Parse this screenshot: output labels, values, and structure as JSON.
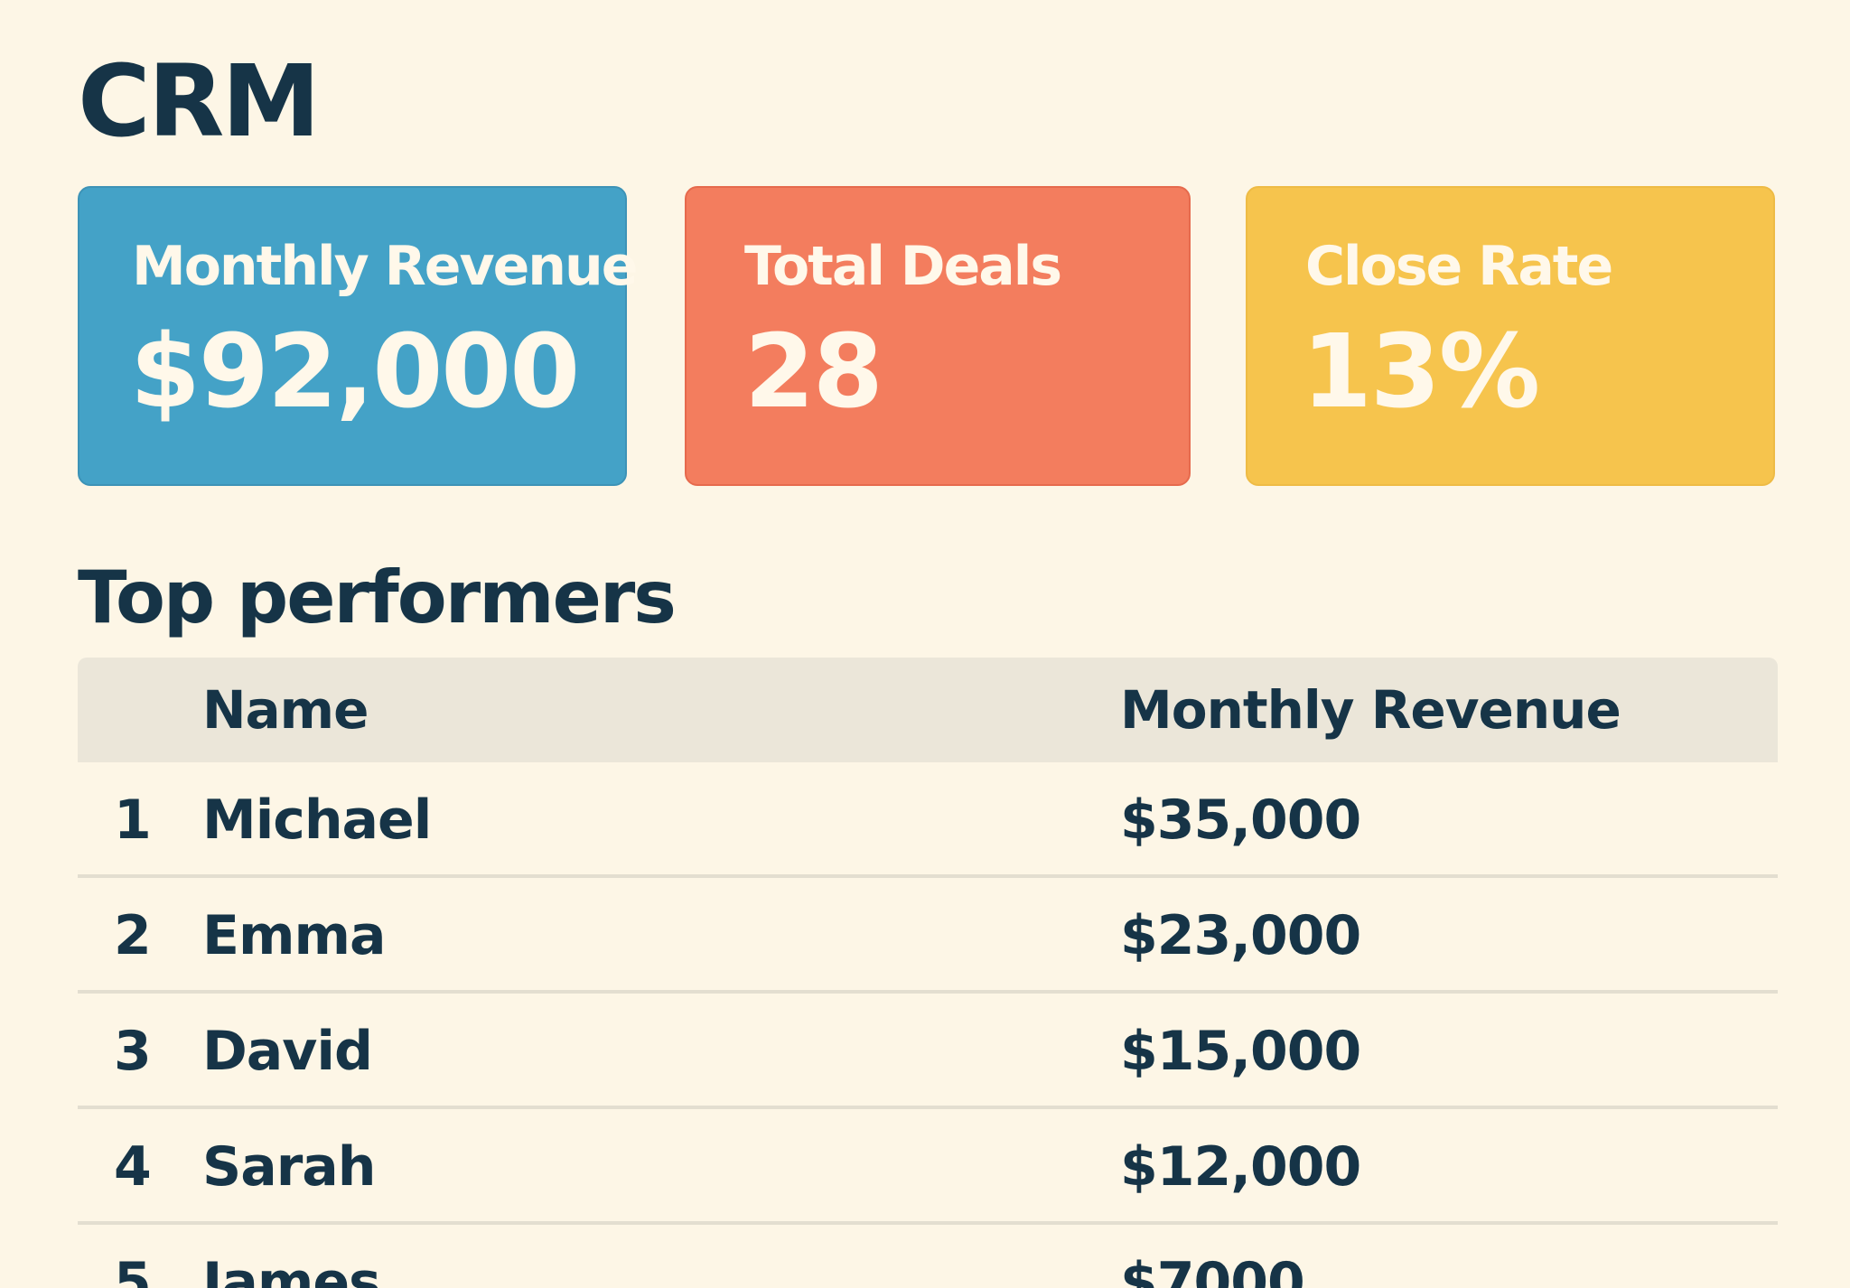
{
  "app": {
    "title": "CRM"
  },
  "cards": [
    {
      "label": "Monthly Revenue",
      "value": "$92,000",
      "color": "#44a2c7"
    },
    {
      "label": "Total Deals",
      "value": "28",
      "color": "#f37d5e"
    },
    {
      "label": "Close Rate",
      "value": "13%",
      "color": "#f6c44d"
    }
  ],
  "performers": {
    "title": "Top performers",
    "columns": {
      "rank": "",
      "name": "Name",
      "revenue": "Monthly Revenue"
    },
    "rows": [
      {
        "rank": "1",
        "name": "Michael",
        "revenue": "$35,000"
      },
      {
        "rank": "2",
        "name": "Emma",
        "revenue": "$23,000"
      },
      {
        "rank": "3",
        "name": "David",
        "revenue": "$15,000"
      },
      {
        "rank": "4",
        "name": "Sarah",
        "revenue": "$12,000"
      },
      {
        "rank": "5",
        "name": "James",
        "revenue": "$7000"
      }
    ]
  }
}
